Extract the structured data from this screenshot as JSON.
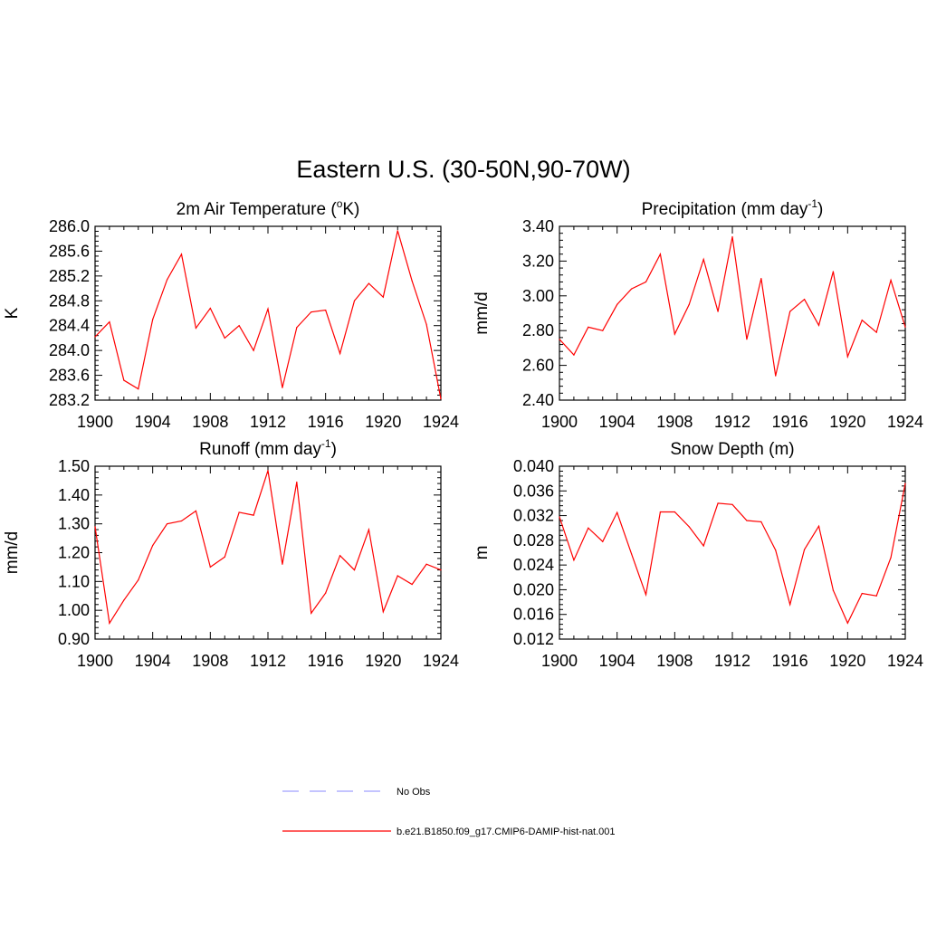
{
  "figure_title": "Eastern U.S. (30-50N,90-70W)",
  "colors": {
    "model_line": "#ff0000",
    "obs_line": "#a0a0ff",
    "axis": "#000000"
  },
  "legend": [
    {
      "label": "No Obs",
      "style": "dashed",
      "color": "#a0a0ff"
    },
    {
      "label": "b.e21.B1850.f09_g17.CMIP6-DAMIP-hist-nat.001",
      "style": "solid",
      "color": "#ff0000"
    }
  ],
  "chart_data": [
    {
      "type": "line",
      "title": {
        "pre": "2m Air Temperature (",
        "sup": "o",
        "post": "K)"
      },
      "ylabel": "K",
      "xlim": [
        1900,
        1924
      ],
      "ylim": [
        283.2,
        286.0
      ],
      "xticks": [
        "1900",
        "1904",
        "1908",
        "1912",
        "1916",
        "1920",
        "1924"
      ],
      "yticks": [
        "283.2",
        "283.6",
        "284.0",
        "284.4",
        "284.8",
        "285.2",
        "285.6",
        "286.0"
      ],
      "x": [
        1900,
        1901,
        1902,
        1903,
        1904,
        1905,
        1906,
        1907,
        1908,
        1909,
        1910,
        1911,
        1912,
        1913,
        1914,
        1915,
        1916,
        1917,
        1918,
        1919,
        1920,
        1921,
        1922,
        1923,
        1924
      ],
      "series": [
        {
          "values": [
            284.22,
            284.46,
            283.52,
            283.38,
            284.5,
            285.14,
            285.55,
            284.36,
            284.68,
            284.2,
            284.4,
            284.0,
            284.67,
            283.4,
            284.37,
            284.62,
            284.65,
            283.95,
            284.8,
            285.08,
            284.86,
            285.93,
            285.12,
            284.42,
            283.22
          ]
        }
      ]
    },
    {
      "type": "line",
      "title": {
        "pre": "Precipitation (mm day",
        "sup": "-1",
        "post": ")"
      },
      "ylabel": "mm/d",
      "xlim": [
        1900,
        1924
      ],
      "ylim": [
        2.4,
        3.4
      ],
      "xticks": [
        "1900",
        "1904",
        "1908",
        "1912",
        "1916",
        "1920",
        "1924"
      ],
      "yticks": [
        "2.40",
        "2.60",
        "2.80",
        "3.00",
        "3.20",
        "3.40"
      ],
      "x": [
        1900,
        1901,
        1902,
        1903,
        1904,
        1905,
        1906,
        1907,
        1908,
        1909,
        1910,
        1911,
        1912,
        1913,
        1914,
        1915,
        1916,
        1917,
        1918,
        1919,
        1920,
        1921,
        1922,
        1923,
        1924
      ],
      "series": [
        {
          "values": [
            2.75,
            2.66,
            2.82,
            2.8,
            2.95,
            3.04,
            3.08,
            3.24,
            2.78,
            2.95,
            3.21,
            2.91,
            3.34,
            2.75,
            3.1,
            2.54,
            2.91,
            2.98,
            2.83,
            3.14,
            2.65,
            2.86,
            2.79,
            3.09,
            2.82
          ]
        }
      ]
    },
    {
      "type": "line",
      "title": {
        "pre": "Runoff (mm day",
        "sup": "-1",
        "post": ")"
      },
      "ylabel": "mm/d",
      "xlim": [
        1900,
        1924
      ],
      "ylim": [
        0.9,
        1.5
      ],
      "xticks": [
        "1900",
        "1904",
        "1908",
        "1912",
        "1916",
        "1920",
        "1924"
      ],
      "yticks": [
        "0.90",
        "1.00",
        "1.10",
        "1.20",
        "1.30",
        "1.40",
        "1.50"
      ],
      "x": [
        1900,
        1901,
        1902,
        1903,
        1904,
        1905,
        1906,
        1907,
        1908,
        1909,
        1910,
        1911,
        1912,
        1913,
        1914,
        1915,
        1916,
        1917,
        1918,
        1919,
        1920,
        1921,
        1922,
        1923,
        1924
      ],
      "series": [
        {
          "values": [
            1.29,
            0.955,
            1.035,
            1.105,
            1.225,
            1.3,
            1.31,
            1.345,
            1.15,
            1.185,
            1.34,
            1.33,
            1.485,
            1.16,
            1.445,
            0.99,
            1.06,
            1.19,
            1.14,
            1.28,
            0.995,
            1.12,
            1.09,
            1.16,
            1.14
          ]
        }
      ]
    },
    {
      "type": "line",
      "title": {
        "pre": "Snow Depth (m)",
        "sup": "",
        "post": ""
      },
      "ylabel": "m",
      "xlim": [
        1900,
        1924
      ],
      "ylim": [
        0.012,
        0.04
      ],
      "xticks": [
        "1900",
        "1904",
        "1908",
        "1912",
        "1916",
        "1920",
        "1924"
      ],
      "yticks": [
        "0.012",
        "0.016",
        "0.020",
        "0.024",
        "0.028",
        "0.032",
        "0.036",
        "0.040"
      ],
      "x": [
        1900,
        1901,
        1902,
        1903,
        1904,
        1905,
        1906,
        1907,
        1908,
        1909,
        1910,
        1911,
        1912,
        1913,
        1914,
        1915,
        1916,
        1917,
        1918,
        1919,
        1920,
        1921,
        1922,
        1923,
        1924
      ],
      "series": [
        {
          "values": [
            0.0318,
            0.0248,
            0.03,
            0.0278,
            0.0325,
            0.0258,
            0.0192,
            0.0326,
            0.0326,
            0.0302,
            0.0271,
            0.034,
            0.0338,
            0.0312,
            0.031,
            0.0264,
            0.0176,
            0.0265,
            0.0303,
            0.0199,
            0.0146,
            0.0194,
            0.019,
            0.0252,
            0.0372
          ]
        }
      ]
    }
  ]
}
